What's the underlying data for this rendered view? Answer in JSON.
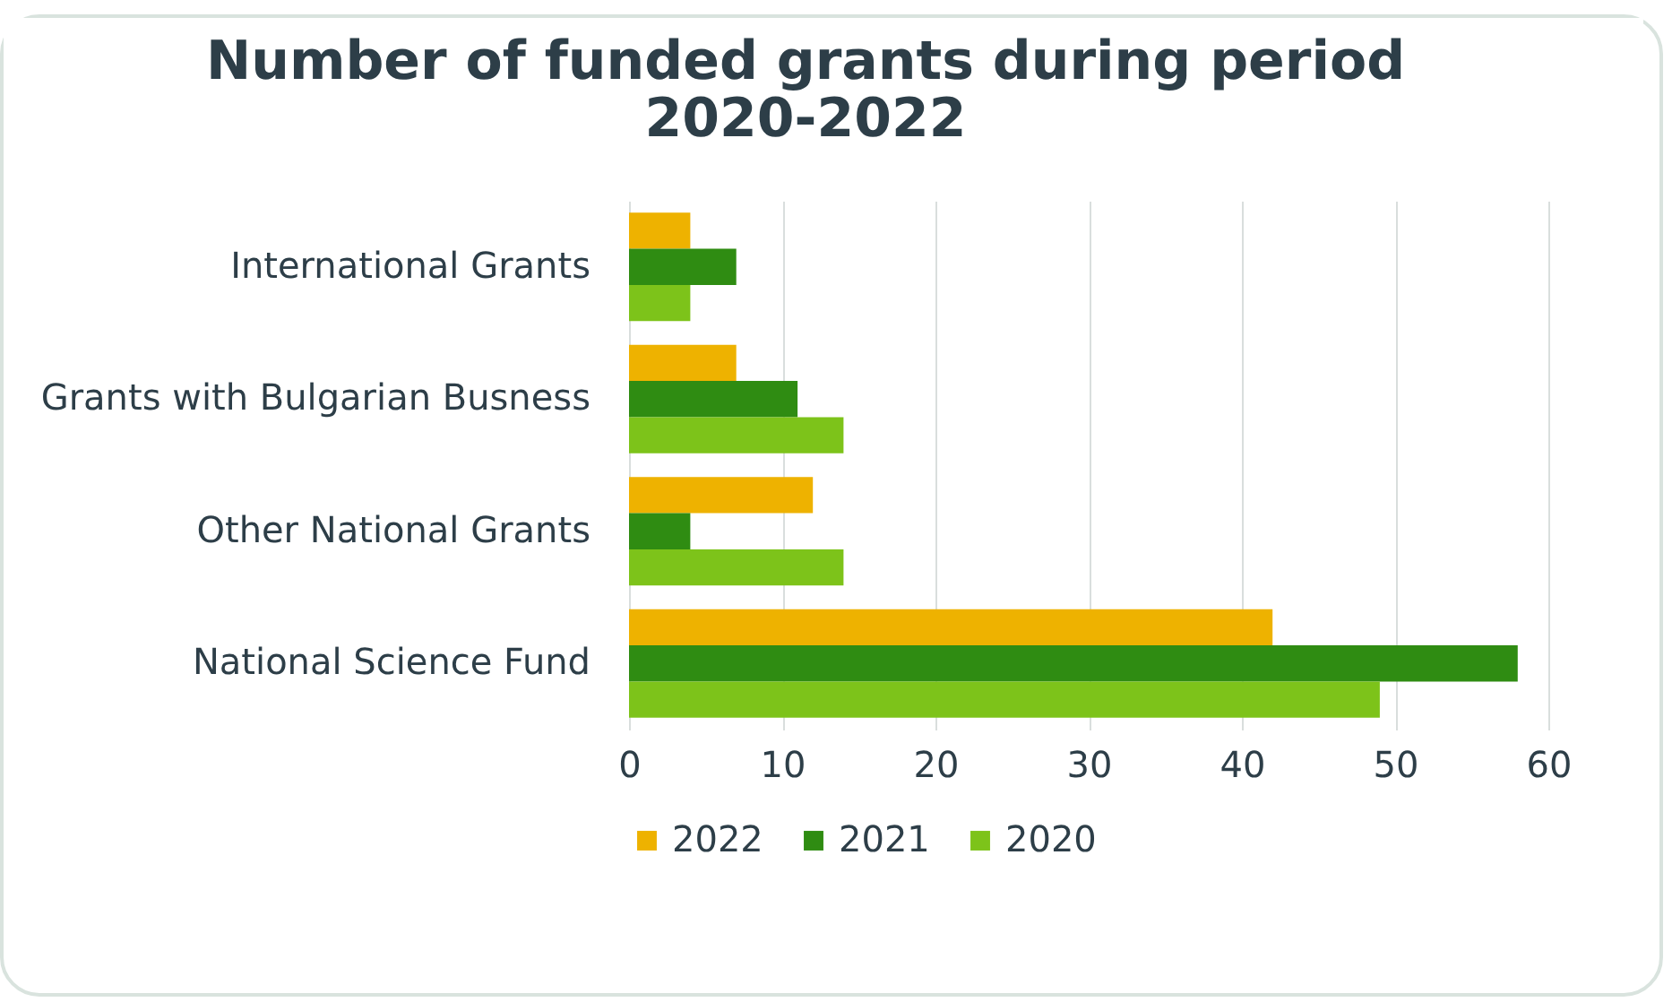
{
  "chart_data": {
    "type": "bar",
    "orientation": "horizontal",
    "title": "Number of funded grants during period\n2020-2022",
    "categories": [
      "International Grants",
      "Grants with Bulgarian Busness",
      "Other National Grants",
      "National Science Fund"
    ],
    "series": [
      {
        "name": "2022",
        "color": "#eeb200",
        "values": [
          4,
          7,
          12,
          42
        ]
      },
      {
        "name": "2021",
        "color": "#2f8c12",
        "values": [
          7,
          11,
          4,
          58
        ]
      },
      {
        "name": "2020",
        "color": "#7dc31a",
        "values": [
          4,
          14,
          14,
          49
        ]
      }
    ],
    "xlim": [
      0,
      60
    ],
    "xticks": [
      0,
      10,
      20,
      30,
      40,
      50,
      60
    ],
    "grid": "x",
    "legend": "bottom"
  }
}
